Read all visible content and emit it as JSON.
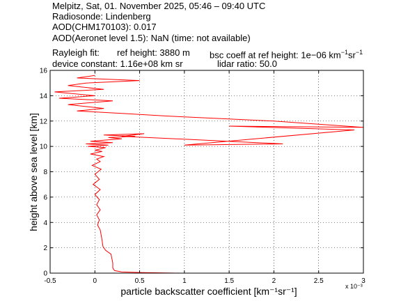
{
  "header": {
    "line1": "Melpitz, Sat, 01. November 2025, 05:46 – 09:40 UTC",
    "line2": "Radiosonde: Lindenberg",
    "line3": "AOD(CHM170103): 0.017",
    "line4": "AOD(Aeronet level 1.5): NaN   (time: not available)",
    "rayleigh_label": "Rayleigh fit:",
    "ref_height": "ref height: 3880 m",
    "bsc_coeff_prefix": "bsc coeff at ref height: 1e−06 km",
    "device_constant": "device constant: 1.16e+08 km sr",
    "lidar_ratio": "lidar ratio: 50.0"
  },
  "chart_data": {
    "type": "line",
    "xlabel": "particle backscatter coefficient [km⁻¹sr⁻¹]",
    "ylabel": "height above sea level [km]",
    "x_scale_note": "x 10⁻³",
    "xlim": [
      -0.5,
      3
    ],
    "ylim": [
      0,
      16
    ],
    "x_ticks": [
      -0.5,
      0,
      0.5,
      1,
      1.5,
      2,
      2.5,
      3
    ],
    "x_tick_labels": [
      "-0.5",
      "0",
      "0.5",
      "1",
      "1.5",
      "2",
      "2.5",
      "3"
    ],
    "y_ticks": [
      0,
      2,
      4,
      6,
      8,
      10,
      12,
      14,
      16
    ],
    "y_tick_labels": [
      "0",
      "2",
      "4",
      "6",
      "8",
      "10",
      "12",
      "14",
      "16"
    ],
    "grid": true,
    "line_color": "#ff0000",
    "series": [
      {
        "x": [
          0.95,
          0.5,
          0.3,
          0.22,
          0.2,
          0.2,
          0.18,
          0.12,
          0.09,
          0.08,
          0.07,
          0.06,
          0.03,
          0.05,
          0.02,
          0.06,
          0.02,
          0.05,
          0.0,
          0.06,
          -0.02,
          0.05,
          0.0,
          0.07,
          -0.03,
          0.06,
          0.02,
          0.1,
          -0.05,
          0.08,
          0.0,
          0.12,
          -0.08,
          0.15,
          -0.1,
          0.2,
          -0.05,
          0.12,
          0.3,
          0.15,
          0.45,
          0.1,
          0.55,
          0.3,
          1.2,
          2.1,
          1.0,
          2.9,
          1.5,
          3.0,
          2.0,
          0.8,
          0.3,
          -0.2,
          0.1,
          -0.3,
          0.2,
          -0.4,
          0.0,
          -0.45,
          0.1,
          -0.3,
          -0.1,
          0.5,
          -0.2,
          0.0
        ],
        "y": [
          0.0,
          0.05,
          0.1,
          0.2,
          0.4,
          0.8,
          1.5,
          1.8,
          2.1,
          2.6,
          3.0,
          3.4,
          3.8,
          4.2,
          4.6,
          5.0,
          5.4,
          5.8,
          6.2,
          6.6,
          7.0,
          7.4,
          7.8,
          8.2,
          8.5,
          8.8,
          9.0,
          9.2,
          9.4,
          9.6,
          9.7,
          9.9,
          10.0,
          10.1,
          10.2,
          10.3,
          10.4,
          10.5,
          10.6,
          10.7,
          10.8,
          10.9,
          11.0,
          10.8,
          10.5,
          10.2,
          10.1,
          11.3,
          11.6,
          11.5,
          12.0,
          12.4,
          12.6,
          12.8,
          13.0,
          13.3,
          13.6,
          13.8,
          14.0,
          14.3,
          14.5,
          14.8,
          15.0,
          15.2,
          15.4,
          15.6
        ]
      }
    ]
  }
}
